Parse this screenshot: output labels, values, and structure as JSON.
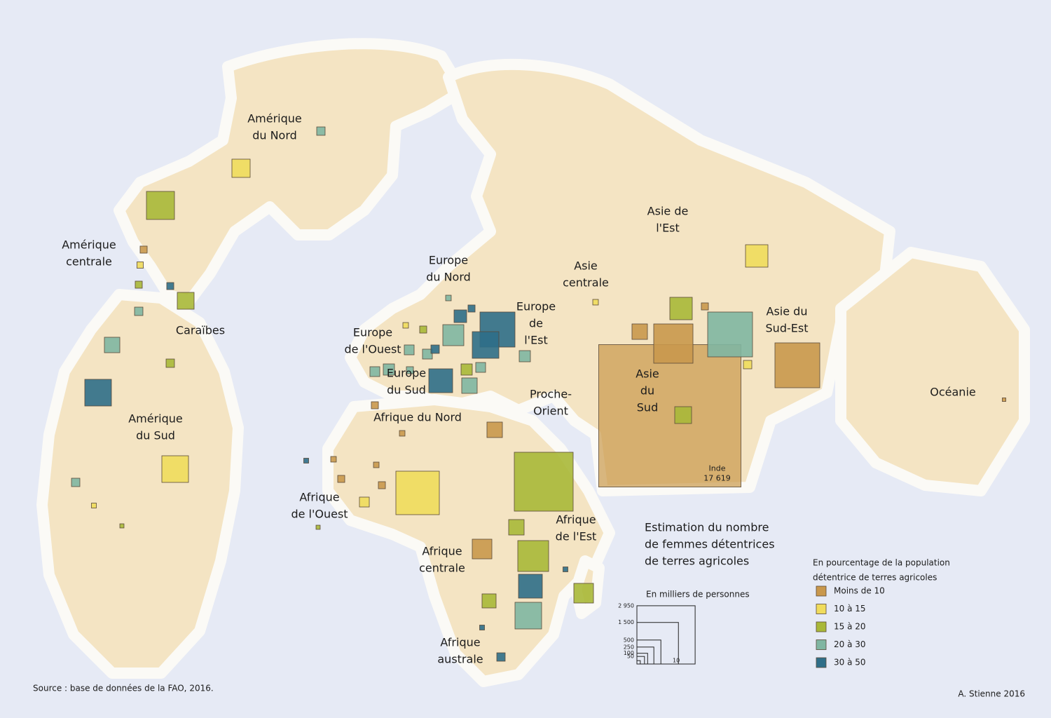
{
  "regions": [
    [
      "Amérique",
      "du Nord"
    ],
    [
      "Amérique",
      "centrale"
    ],
    [
      "Caraïbes"
    ],
    [
      "Amérique",
      "du Sud"
    ],
    [
      "Europe",
      "du Nord"
    ],
    [
      "Europe",
      "de",
      "l'Est"
    ],
    [
      "Europe",
      "de l'Ouest"
    ],
    [
      "Europe",
      "du Sud"
    ],
    [
      "Asie",
      "centrale"
    ],
    [
      "Asie de",
      "l'Est"
    ],
    [
      "Asie du",
      "Sud-Est"
    ],
    [
      "Asie",
      "du",
      "Sud"
    ],
    [
      "Proche-",
      "Orient"
    ],
    [
      "Afrique du Nord"
    ],
    [
      "Afrique",
      "de l'Ouest"
    ],
    [
      "Afrique",
      "de l'Est"
    ],
    [
      "Afrique",
      "centrale"
    ],
    [
      "Afrique",
      "australe"
    ],
    [
      "Océanie"
    ]
  ],
  "squares": [
    {
      "value": 17619,
      "class": 0,
      "label": "Inde",
      "value_label": "17 619"
    },
    {
      "value": 61,
      "class": 3
    },
    {
      "value": 289,
      "class": 1
    },
    {
      "value": 683,
      "class": 2
    },
    {
      "value": 43,
      "class": 0
    },
    {
      "value": 35,
      "class": 1
    },
    {
      "value": 43,
      "class": 2
    },
    {
      "value": 43,
      "class": 4
    },
    {
      "value": 246,
      "class": 2
    },
    {
      "value": 61,
      "class": 3
    },
    {
      "value": 207,
      "class": 3
    },
    {
      "value": 61,
      "class": 2
    },
    {
      "value": 617,
      "class": 4
    },
    {
      "value": 617,
      "class": 1
    },
    {
      "value": 61,
      "class": 3
    },
    {
      "value": 21,
      "class": 1
    },
    {
      "value": 15,
      "class": 2
    },
    {
      "value": 1068,
      "class": 4
    },
    {
      "value": 617,
      "class": 4
    },
    {
      "value": 384,
      "class": 3
    },
    {
      "value": 138,
      "class": 4
    },
    {
      "value": 43,
      "class": 4
    },
    {
      "value": 27,
      "class": 3
    },
    {
      "value": 84,
      "class": 3
    },
    {
      "value": 61,
      "class": 4
    },
    {
      "value": 84,
      "class": 3
    },
    {
      "value": 494,
      "class": 4
    },
    {
      "value": 207,
      "class": 3
    },
    {
      "value": 109,
      "class": 2
    },
    {
      "value": 84,
      "class": 3
    },
    {
      "value": 109,
      "class": 3
    },
    {
      "value": 109,
      "class": 3
    },
    {
      "value": 84,
      "class": 3
    },
    {
      "value": 43,
      "class": 3
    },
    {
      "value": 43,
      "class": 2
    },
    {
      "value": 27,
      "class": 1
    },
    {
      "value": 437,
      "class": 2
    },
    {
      "value": 437,
      "class": 1
    },
    {
      "value": 1750,
      "class": 3
    },
    {
      "value": 1340,
      "class": 0
    },
    {
      "value": 207,
      "class": 0
    },
    {
      "value": 1750,
      "class": 0
    },
    {
      "value": 246,
      "class": 2
    },
    {
      "value": 43,
      "class": 0
    },
    {
      "value": 27,
      "class": 1
    },
    {
      "value": 61,
      "class": 1
    },
    {
      "value": 11,
      "class": 0
    },
    {
      "value": 207,
      "class": 0
    },
    {
      "value": 3014,
      "class": 2
    },
    {
      "value": 1642,
      "class": 1
    },
    {
      "value": 207,
      "class": 2
    },
    {
      "value": 827,
      "class": 2
    },
    {
      "value": 335,
      "class": 0
    },
    {
      "value": 494,
      "class": 4
    },
    {
      "value": 335,
      "class": 2
    },
    {
      "value": 617,
      "class": 3
    },
    {
      "value": 171,
      "class": 2
    },
    {
      "value": 61,
      "class": 4
    },
    {
      "value": 84,
      "class": 1
    },
    {
      "value": 43,
      "class": 0
    },
    {
      "value": 43,
      "class": 0
    },
    {
      "value": 27,
      "class": 0
    },
    {
      "value": 27,
      "class": 0
    },
    {
      "value": 21,
      "class": 4
    },
    {
      "value": 43,
      "class": 0
    },
    {
      "value": 27,
      "class": 0
    },
    {
      "value": 21,
      "class": 4
    },
    {
      "value": 21,
      "class": 4
    },
    {
      "value": 15,
      "class": 2
    }
  ],
  "legend": {
    "title": [
      "Estimation du nombre",
      "de femmes détentrices",
      "de terres agricoles"
    ],
    "size_title": "En milliers de personnes",
    "size_ticks": [
      10,
      50,
      100,
      250,
      500,
      {
        "value": 1500,
        "label": "1 500"
      },
      {
        "value": 2950,
        "label": "2 950"
      }
    ],
    "class_title": [
      "En pourcentage de la population",
      "détentrice de terres agricoles"
    ],
    "classes": [
      {
        "label": "Moins de 10",
        "color": "#c9984c"
      },
      {
        "label": "10 à 15",
        "color": "#f0dc5c"
      },
      {
        "label": "15 à 20",
        "color": "#a9b838"
      },
      {
        "label": "20 à 30",
        "color": "#80b6a2"
      },
      {
        "label": "30 à 50",
        "color": "#2f6e88"
      }
    ]
  },
  "source": "Source : base de données de la FAO, 2016.",
  "signature": "A. Stienne 2016"
}
